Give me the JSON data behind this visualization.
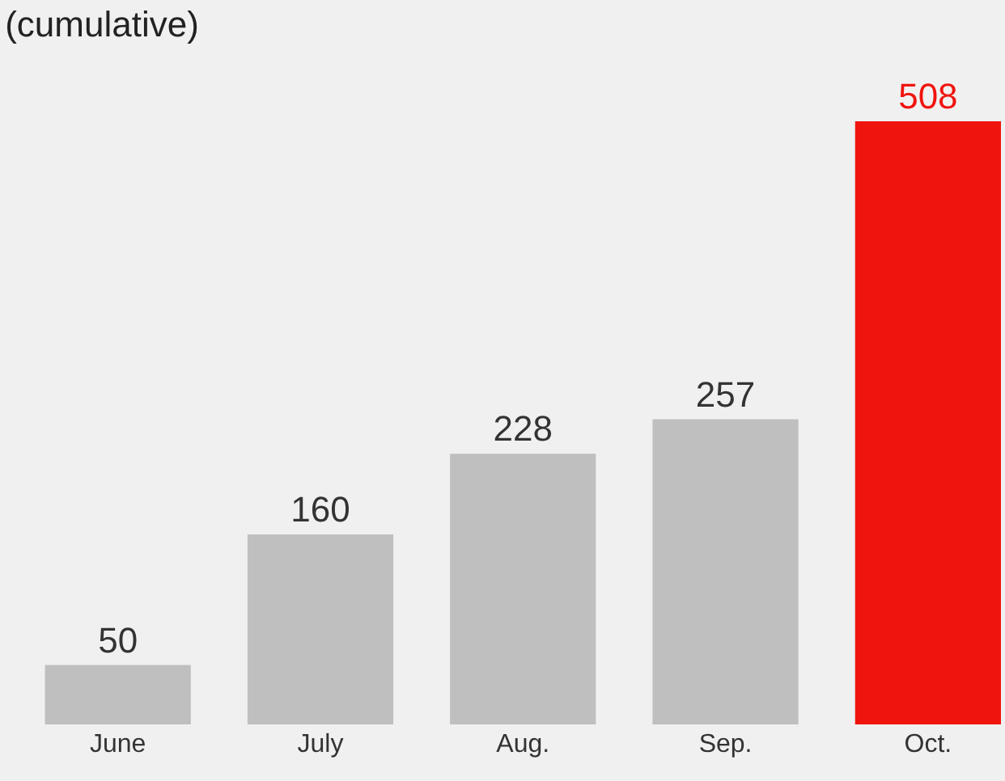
{
  "chart_data": {
    "type": "bar",
    "title": "(cumulative)",
    "categories": [
      "June",
      "July",
      "Aug.",
      "Sep.",
      "Oct."
    ],
    "values": [
      50,
      160,
      228,
      257,
      508
    ],
    "colors": [
      "#bfbfbf",
      "#bfbfbf",
      "#bfbfbf",
      "#bfbfbf",
      "#f0140f"
    ],
    "data_labels": true
  }
}
